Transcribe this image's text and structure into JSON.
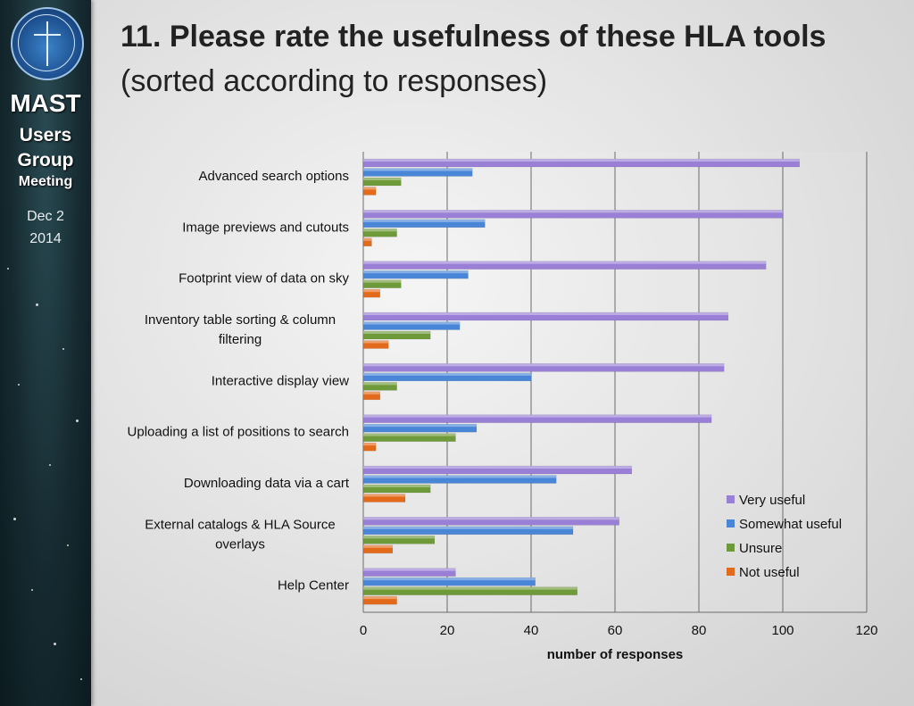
{
  "sidebar": {
    "brand_lines": [
      "MAST",
      "Users",
      "Group",
      "Meeting"
    ],
    "date_lines": [
      "Dec 2",
      "2014"
    ]
  },
  "header": {
    "title": "11. Please rate the usefulness of these HLA tools",
    "subtitle": "(sorted according to responses)"
  },
  "colors": {
    "very_useful": "#9a7fd6",
    "somewhat_useful": "#4a86d8",
    "unsure": "#6f9a3a",
    "not_useful": "#e36a1a"
  },
  "chart_data": {
    "type": "bar",
    "orientation": "horizontal",
    "categories": [
      "Advanced search options",
      "Image previews and cutouts",
      "Footprint view of data on sky",
      "Inventory table sorting & column filtering",
      "Interactive display view",
      "Uploading a list of positions to search",
      "Downloading data via a cart",
      "External catalogs & HLA Source overlays",
      "Help Center"
    ],
    "category_label_lines": [
      [
        "Advanced search options"
      ],
      [
        "Image previews and cutouts"
      ],
      [
        "Footprint view of data on sky"
      ],
      [
        "Inventory table sorting & column",
        "filtering"
      ],
      [
        "Interactive display view"
      ],
      [
        "Uploading a list of positions to search"
      ],
      [
        "Downloading data via a cart"
      ],
      [
        "External catalogs & HLA Source",
        "overlays"
      ],
      [
        "Help Center"
      ]
    ],
    "series": [
      {
        "name": "Very useful",
        "values": [
          104,
          100,
          96,
          87,
          86,
          83,
          64,
          61,
          22
        ]
      },
      {
        "name": "Somewhat useful",
        "values": [
          26,
          29,
          25,
          23,
          40,
          27,
          46,
          50,
          41
        ]
      },
      {
        "name": "Unsure",
        "values": [
          9,
          8,
          9,
          16,
          8,
          22,
          16,
          17,
          51
        ]
      },
      {
        "name": "Not useful",
        "values": [
          3,
          2,
          4,
          6,
          4,
          3,
          10,
          7,
          8
        ]
      }
    ],
    "xlabel": "number of responses",
    "xlim": [
      0,
      120
    ],
    "xticks": [
      0,
      20,
      40,
      60,
      80,
      100,
      120
    ],
    "grid": true,
    "legend_position": "bottom-right"
  }
}
